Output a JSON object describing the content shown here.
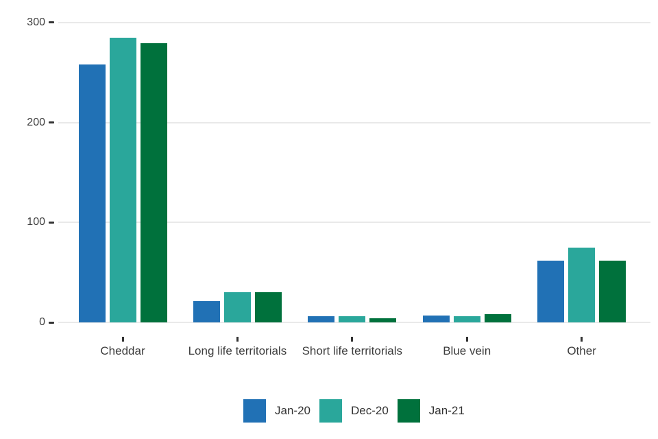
{
  "chart_data": {
    "type": "bar",
    "title": "",
    "xlabel": "",
    "ylabel": "",
    "categories": [
      "Cheddar",
      "Long life territorials",
      "Short life territorials",
      "Blue vein",
      "Other"
    ],
    "series": [
      {
        "name": "Jan-20",
        "color": "#2171B5",
        "values": [
          258,
          21,
          6,
          7,
          62
        ]
      },
      {
        "name": "Dec-20",
        "color": "#2AA79B",
        "values": [
          285,
          30,
          6,
          6,
          75
        ]
      },
      {
        "name": "Jan-21",
        "color": "#00713C",
        "values": [
          279,
          30,
          4,
          8,
          62
        ]
      }
    ],
    "y_ticks": [
      0,
      100,
      200,
      300
    ],
    "ylim": [
      0,
      310
    ],
    "grid": true,
    "legend_position": "bottom"
  },
  "colors": {
    "background": "#ffffff",
    "gridline": "#e9e9e9",
    "axis_text": "#3d3d3d",
    "tick_mark": "#333333"
  }
}
